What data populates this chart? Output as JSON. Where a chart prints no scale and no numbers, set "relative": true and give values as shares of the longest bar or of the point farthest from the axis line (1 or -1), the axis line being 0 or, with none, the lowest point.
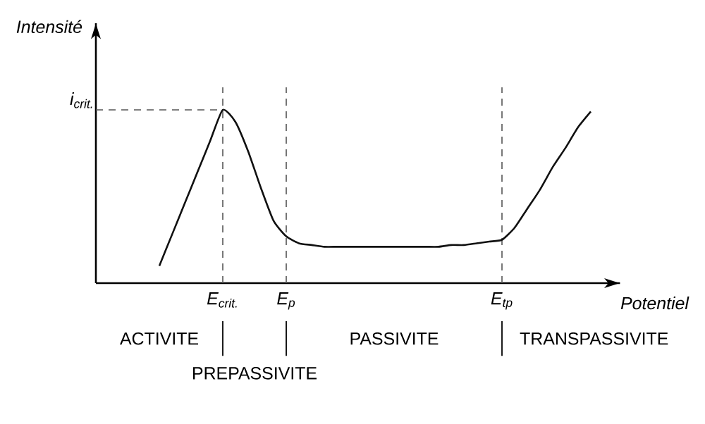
{
  "chart_data": {
    "type": "line",
    "relative": true,
    "xlabel": "Potentiel",
    "ylabel": "Intensité",
    "categories": [
      null,
      null,
      null,
      null,
      null,
      null,
      null,
      null,
      null,
      null,
      "E$_{crit.}$",
      null,
      null,
      null,
      null,
      "E$_{p}$",
      null,
      null,
      null,
      null,
      null,
      null,
      null,
      null,
      null,
      null,
      null,
      null,
      null,
      null,
      null,
      null,
      "E$_{tp}$",
      null,
      null,
      null,
      null,
      null,
      null,
      null,
      null,
      null
    ],
    "values": [
      null,
      null,
      null,
      null,
      null,
      0.1,
      0.28,
      0.46,
      0.64,
      0.82,
      1,
      0.93,
      0.76,
      0.55,
      0.36,
      0.27,
      0.23,
      0.22,
      0.21,
      0.21,
      0.21,
      0.21,
      0.21,
      0.21,
      0.21,
      0.21,
      0.21,
      0.21,
      0.22,
      0.22,
      0.23,
      0.24,
      0.25,
      0.32,
      0.43,
      0.54,
      0.67,
      0.78,
      0.9,
      0.99,
      null,
      null
    ],
    "color": "#111111",
    "line_style": "solid",
    "marker": "none",
    "grid": "x",
    "ref_lines": [
      {
        "axis": "y",
        "value": 1,
        "label": "i$_{crit.}$",
        "line_style": "dashed",
        "color": "#555555"
      }
    ],
    "annotations": [
      "ACTIVITE",
      "PREPASSIVITE",
      "PASSIVITE",
      "TRANSPASSIVITE"
    ]
  }
}
